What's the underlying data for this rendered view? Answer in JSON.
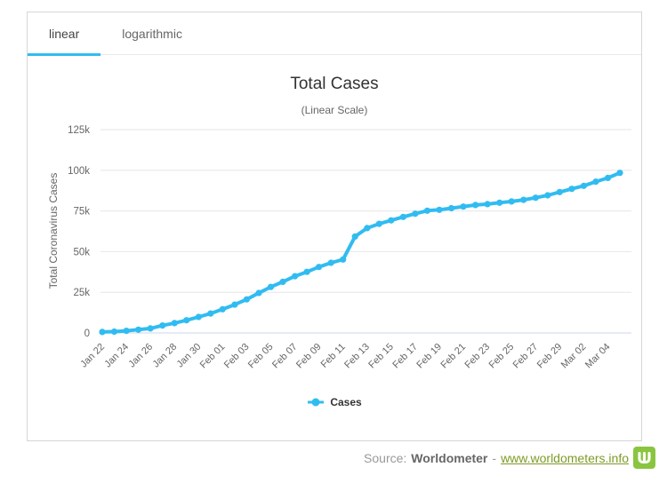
{
  "tabs": [
    {
      "label": "linear",
      "active": true
    },
    {
      "label": "logarithmic",
      "active": false
    }
  ],
  "chart_data": {
    "type": "line",
    "title": "Total Cases",
    "subtitle": "(Linear Scale)",
    "xlabel": "",
    "ylabel": "Total Coronavirus Cases",
    "ylim": [
      0,
      125000
    ],
    "ytick_step": 25000,
    "ytick_labels": [
      "0",
      "25k",
      "50k",
      "75k",
      "100k",
      "125k"
    ],
    "grid": true,
    "legend_position": "bottom",
    "xtick_every": 2,
    "x": [
      "Jan 22",
      "Jan 23",
      "Jan 24",
      "Jan 25",
      "Jan 26",
      "Jan 27",
      "Jan 28",
      "Jan 29",
      "Jan 30",
      "Jan 31",
      "Feb 01",
      "Feb 02",
      "Feb 03",
      "Feb 04",
      "Feb 05",
      "Feb 06",
      "Feb 07",
      "Feb 08",
      "Feb 09",
      "Feb 10",
      "Feb 11",
      "Feb 12",
      "Feb 13",
      "Feb 14",
      "Feb 15",
      "Feb 16",
      "Feb 17",
      "Feb 18",
      "Feb 19",
      "Feb 20",
      "Feb 21",
      "Feb 22",
      "Feb 23",
      "Feb 24",
      "Feb 25",
      "Feb 26",
      "Feb 27",
      "Feb 28",
      "Feb 29",
      "Mar 01",
      "Mar 02",
      "Mar 03",
      "Mar 04",
      "Mar 05"
    ],
    "series": [
      {
        "name": "Cases",
        "color": "#31bcf1",
        "values": [
          580,
          845,
          1317,
          2015,
          2800,
          4581,
          6058,
          7813,
          9823,
          11950,
          14553,
          17391,
          20630,
          24545,
          28266,
          31439,
          34876,
          37552,
          40553,
          43099,
          45134,
          59287,
          64438,
          67100,
          69197,
          71329,
          73332,
          75184,
          75700,
          76677,
          77673,
          78651,
          79205,
          80087,
          80828,
          81820,
          83112,
          84615,
          86604,
          88585,
          90443,
          93016,
          95314,
          98425
        ]
      }
    ]
  },
  "footer": {
    "source_label": "Source:",
    "source_name": "Worldometer",
    "separator": "-",
    "link": "www.worldometers.info",
    "logo": "worldometer-w-logo"
  },
  "colors": {
    "accent": "#31bcf1",
    "grid": "#e6e6e6",
    "axis_line": "#ccd6eb",
    "tick_text": "#666666",
    "brand_green": "#8ac53f",
    "link_green": "#7d9b26"
  }
}
